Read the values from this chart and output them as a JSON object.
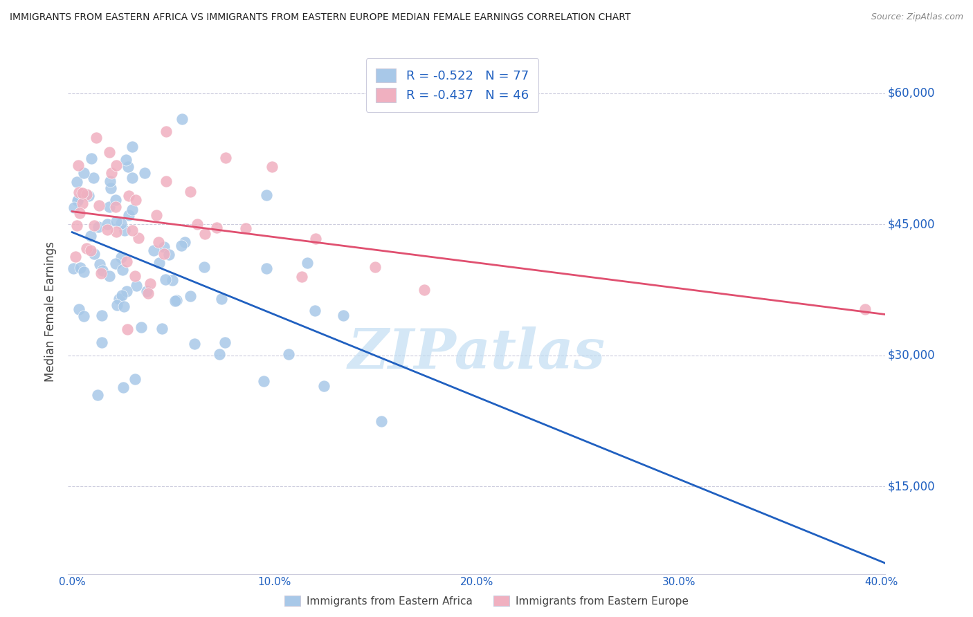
{
  "title": "IMMIGRANTS FROM EASTERN AFRICA VS IMMIGRANTS FROM EASTERN EUROPE MEDIAN FEMALE EARNINGS CORRELATION CHART",
  "source": "Source: ZipAtlas.com",
  "ylabel": "Median Female Earnings",
  "ytick_labels": [
    "$15,000",
    "$30,000",
    "$45,000",
    "$60,000"
  ],
  "ytick_values": [
    15000,
    30000,
    45000,
    60000
  ],
  "ymin": 5000,
  "ymax": 65000,
  "xmin": -0.002,
  "xmax": 0.402,
  "blue_R": -0.522,
  "blue_N": 77,
  "pink_R": -0.437,
  "pink_N": 46,
  "blue_color": "#a8c8e8",
  "pink_color": "#f0b0c0",
  "blue_line_color": "#2060c0",
  "pink_line_color": "#e05070",
  "watermark": "ZIPatlas",
  "watermark_color": "#b8d8f0",
  "title_color": "#222222",
  "source_color": "#888888",
  "label_color": "#2060c0",
  "axis_color": "#444444",
  "grid_color": "#ccccdd",
  "xtick_labels": [
    "0.0%",
    "10.0%",
    "20.0%",
    "30.0%",
    "40.0%"
  ],
  "xtick_values": [
    0.0,
    0.1,
    0.2,
    0.3,
    0.4
  ],
  "blue_label": "Immigrants from Eastern Africa",
  "pink_label": "Immigrants from Eastern Europe"
}
